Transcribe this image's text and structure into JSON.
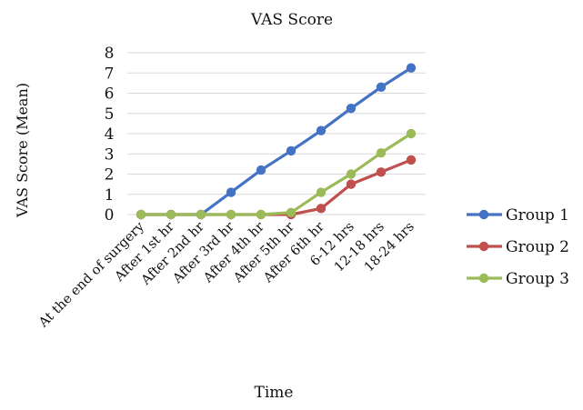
{
  "chart_data": {
    "type": "line",
    "title": "VAS Score",
    "xlabel": "Time",
    "ylabel": "VAS Score (Mean)",
    "ylim": [
      0,
      8
    ],
    "yticks": [
      0,
      1,
      2,
      3,
      4,
      5,
      6,
      7,
      8
    ],
    "grid": true,
    "legend_position": "right",
    "categories": [
      "At the end of surgery",
      "After 1st hr",
      "After 2nd hr",
      "After  3rd hr",
      "After 4th hr",
      "After 5th  hr",
      "After 6th hr",
      "6-12 hrs",
      "12-18 hrs",
      "18-24 hrs"
    ],
    "series": [
      {
        "name": "Group 1",
        "color": "#4472C4",
        "values": [
          0,
          0,
          0,
          1.1,
          2.2,
          3.15,
          4.15,
          5.25,
          6.3,
          7.25
        ]
      },
      {
        "name": "Group 2",
        "color": "#C0504D",
        "values": [
          0,
          0,
          0,
          0,
          0,
          0,
          0.3,
          1.5,
          2.1,
          2.7
        ]
      },
      {
        "name": "Group 3",
        "color": "#9BBB59",
        "values": [
          0,
          0,
          0,
          0,
          0,
          0.1,
          1.1,
          2.0,
          3.05,
          4.0
        ]
      }
    ]
  }
}
